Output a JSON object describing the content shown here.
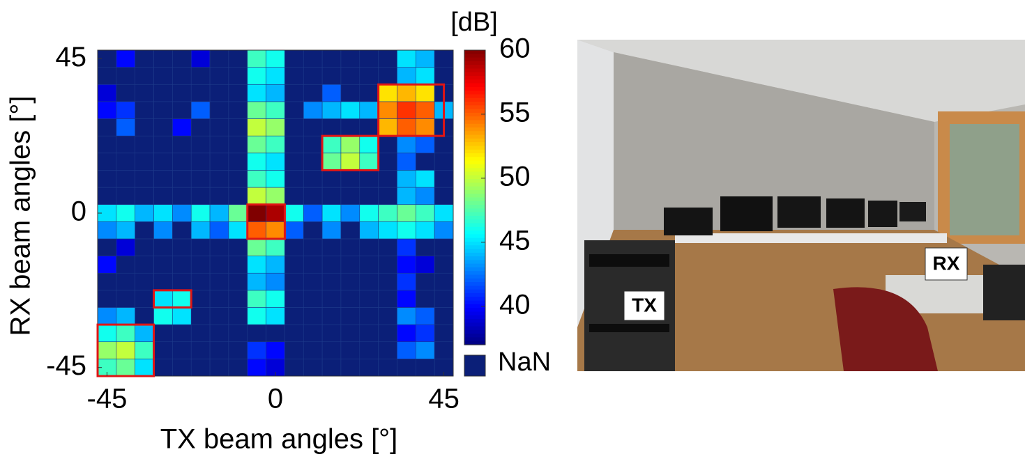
{
  "chart_data": {
    "type": "heatmap",
    "xlabel": "TX beam angles [°]",
    "ylabel": "RX beam angles [°]",
    "x": [
      -45,
      -40,
      -35,
      -30,
      -25,
      -20,
      -15,
      -10,
      -5,
      0,
      5,
      10,
      15,
      20,
      25,
      30,
      35,
      40,
      45
    ],
    "y": [
      -45,
      -40,
      -35,
      -30,
      -25,
      -20,
      -15,
      -10,
      -5,
      0,
      5,
      10,
      15,
      20,
      25,
      30,
      35,
      40,
      45
    ],
    "z": [
      [
        47,
        48,
        45,
        null,
        null,
        null,
        null,
        null,
        40,
        39,
        null,
        null,
        null,
        null,
        null,
        null,
        null,
        null,
        null
      ],
      [
        49,
        50,
        47,
        null,
        null,
        null,
        null,
        null,
        41,
        40,
        null,
        null,
        null,
        null,
        null,
        null,
        42,
        43,
        null
      ],
      [
        46,
        47,
        44,
        null,
        null,
        null,
        null,
        null,
        null,
        null,
        null,
        null,
        null,
        null,
        null,
        null,
        40,
        41,
        null
      ],
      [
        43,
        44,
        null,
        46,
        45,
        null,
        null,
        null,
        46,
        45,
        null,
        null,
        null,
        null,
        null,
        null,
        43,
        42,
        null
      ],
      [
        null,
        null,
        null,
        45,
        46,
        null,
        null,
        null,
        47,
        46,
        null,
        null,
        null,
        null,
        null,
        null,
        40,
        null,
        null
      ],
      [
        null,
        null,
        null,
        null,
        null,
        null,
        null,
        null,
        44,
        43,
        null,
        null,
        null,
        null,
        null,
        null,
        41,
        null,
        null
      ],
      [
        40,
        null,
        null,
        null,
        null,
        null,
        null,
        null,
        45,
        44,
        null,
        null,
        null,
        null,
        null,
        null,
        40,
        39,
        null
      ],
      [
        null,
        39,
        null,
        null,
        null,
        null,
        null,
        null,
        48,
        47,
        null,
        null,
        null,
        null,
        null,
        null,
        41,
        null,
        null
      ],
      [
        43,
        44,
        null,
        43,
        null,
        44,
        42,
        45,
        55,
        54,
        42,
        null,
        43,
        null,
        44,
        45,
        46,
        45,
        43
      ],
      [
        45,
        46,
        44,
        45,
        43,
        46,
        44,
        48,
        60,
        59,
        46,
        42,
        45,
        43,
        46,
        47,
        48,
        47,
        45
      ],
      [
        null,
        null,
        null,
        null,
        null,
        null,
        null,
        null,
        50,
        49,
        null,
        null,
        null,
        null,
        null,
        null,
        44,
        43,
        null
      ],
      [
        null,
        null,
        null,
        null,
        null,
        null,
        null,
        null,
        47,
        46,
        null,
        null,
        null,
        null,
        null,
        null,
        44,
        45,
        null
      ],
      [
        null,
        null,
        null,
        null,
        null,
        null,
        null,
        null,
        46,
        45,
        null,
        null,
        48,
        50,
        47,
        null,
        42,
        null,
        null
      ],
      [
        null,
        null,
        null,
        null,
        null,
        null,
        null,
        null,
        48,
        47,
        null,
        null,
        47,
        49,
        46,
        null,
        43,
        42,
        null
      ],
      [
        null,
        42,
        null,
        null,
        40,
        null,
        null,
        null,
        50,
        49,
        null,
        null,
        null,
        null,
        null,
        53,
        55,
        54,
        null
      ],
      [
        40,
        41,
        null,
        null,
        null,
        42,
        null,
        null,
        48,
        47,
        null,
        43,
        44,
        45,
        44,
        54,
        56,
        55,
        44
      ],
      [
        39,
        null,
        null,
        null,
        null,
        null,
        null,
        null,
        45,
        44,
        null,
        null,
        42,
        null,
        null,
        52,
        53,
        52,
        null
      ],
      [
        null,
        null,
        null,
        null,
        null,
        null,
        null,
        null,
        46,
        45,
        null,
        null,
        null,
        null,
        null,
        null,
        44,
        45,
        null
      ],
      [
        null,
        40,
        null,
        null,
        null,
        39,
        null,
        null,
        47,
        46,
        null,
        null,
        null,
        null,
        null,
        null,
        45,
        44,
        null
      ]
    ],
    "xlim": [
      -47.5,
      47.5
    ],
    "ylim": [
      -47.5,
      47.5
    ],
    "xticks": [
      -45,
      0,
      45
    ],
    "yticks": [
      -45,
      0,
      45
    ],
    "colormap": "jet",
    "colorbar": {
      "label": "[dB]",
      "lim": [
        37,
        60
      ],
      "ticks": [
        40,
        45,
        50,
        55,
        60
      ],
      "nan_label": "NaN",
      "nan_color": "#0b1f78"
    },
    "highlight_color": "#e01515",
    "highlight_boxes": [
      {
        "x": [
          -7.5,
          2.5
        ],
        "y": [
          -7.5,
          2.5
        ]
      },
      {
        "x": [
          12.5,
          27.5
        ],
        "y": [
          12.5,
          22.5
        ]
      },
      {
        "x": [
          27.5,
          45
        ],
        "y": [
          22.5,
          37.5
        ]
      },
      {
        "x": [
          -32.5,
          -22.5
        ],
        "y": [
          -27.5,
          -22.5
        ]
      },
      {
        "x": [
          -47.5,
          -32.5
        ],
        "y": [
          -47.5,
          -32.5
        ]
      }
    ]
  },
  "photo": {
    "labels": [
      "TX",
      "RX"
    ]
  }
}
